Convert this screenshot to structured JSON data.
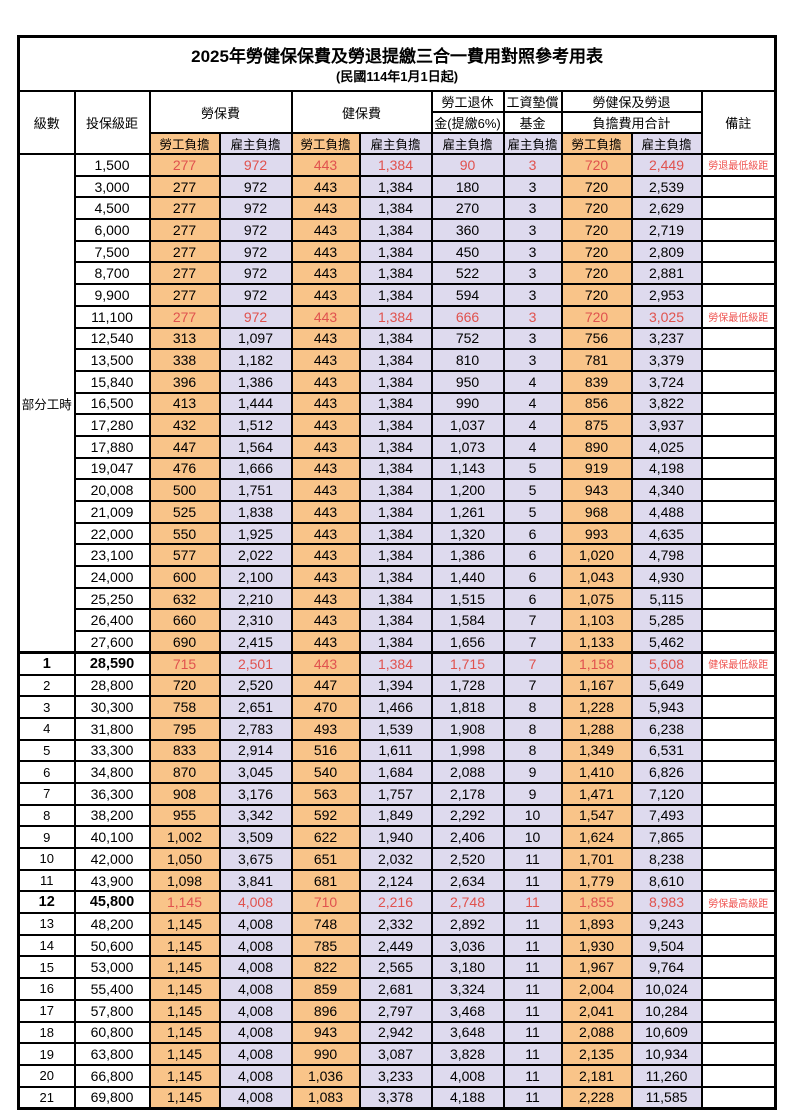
{
  "title": "2025年勞健保保費及勞退提繳三合一費用對照參考用表",
  "subtitle": "(民國114年1月1日起)",
  "colors": {
    "employee_bg": "#f9c489",
    "employer_bg": "#dedaee",
    "red_text": "#e0524e",
    "remark_red": "#ef5350",
    "border": "#000000"
  },
  "header": {
    "level": "級數",
    "bracket": "投保級距",
    "labor_ins": "勞保費",
    "health_ins": "健保費",
    "pension_l1": "勞工退休",
    "pension_l2": "金(提繳6%)",
    "wage_fund_l1": "工資墊償",
    "wage_fund_l2": "基金",
    "total_l1": "勞健保及勞退",
    "total_l2": "負擔費用合計",
    "employee": "勞工負擔",
    "employer": "雇主負擔",
    "remark": "備註"
  },
  "table": {
    "part_time_label": "部分工時",
    "part_time_rowspan": 23,
    "rows": [
      {
        "level": "",
        "bracket": "1,500",
        "values": [
          "277",
          "972",
          "443",
          "1,384",
          "90",
          "3",
          "720",
          "2,449"
        ],
        "remark": "勞退最低級距",
        "red": true,
        "em": false
      },
      {
        "level": "",
        "bracket": "3,000",
        "values": [
          "277",
          "972",
          "443",
          "1,384",
          "180",
          "3",
          "720",
          "2,539"
        ],
        "remark": "",
        "red": false,
        "em": false
      },
      {
        "level": "",
        "bracket": "4,500",
        "values": [
          "277",
          "972",
          "443",
          "1,384",
          "270",
          "3",
          "720",
          "2,629"
        ],
        "remark": "",
        "red": false,
        "em": false
      },
      {
        "level": "",
        "bracket": "6,000",
        "values": [
          "277",
          "972",
          "443",
          "1,384",
          "360",
          "3",
          "720",
          "2,719"
        ],
        "remark": "",
        "red": false,
        "em": false
      },
      {
        "level": "",
        "bracket": "7,500",
        "values": [
          "277",
          "972",
          "443",
          "1,384",
          "450",
          "3",
          "720",
          "2,809"
        ],
        "remark": "",
        "red": false,
        "em": false
      },
      {
        "level": "",
        "bracket": "8,700",
        "values": [
          "277",
          "972",
          "443",
          "1,384",
          "522",
          "3",
          "720",
          "2,881"
        ],
        "remark": "",
        "red": false,
        "em": false
      },
      {
        "level": "",
        "bracket": "9,900",
        "values": [
          "277",
          "972",
          "443",
          "1,384",
          "594",
          "3",
          "720",
          "2,953"
        ],
        "remark": "",
        "red": false,
        "em": false
      },
      {
        "level": "",
        "bracket": "11,100",
        "values": [
          "277",
          "972",
          "443",
          "1,384",
          "666",
          "3",
          "720",
          "3,025"
        ],
        "remark": "勞保最低級距",
        "red": true,
        "em": false
      },
      {
        "level": "",
        "bracket": "12,540",
        "values": [
          "313",
          "1,097",
          "443",
          "1,384",
          "752",
          "3",
          "756",
          "3,237"
        ],
        "remark": "",
        "red": false,
        "em": false
      },
      {
        "level": "",
        "bracket": "13,500",
        "values": [
          "338",
          "1,182",
          "443",
          "1,384",
          "810",
          "3",
          "781",
          "3,379"
        ],
        "remark": "",
        "red": false,
        "em": false
      },
      {
        "level": "",
        "bracket": "15,840",
        "values": [
          "396",
          "1,386",
          "443",
          "1,384",
          "950",
          "4",
          "839",
          "3,724"
        ],
        "remark": "",
        "red": false,
        "em": false
      },
      {
        "level": "",
        "bracket": "16,500",
        "values": [
          "413",
          "1,444",
          "443",
          "1,384",
          "990",
          "4",
          "856",
          "3,822"
        ],
        "remark": "",
        "red": false,
        "em": false
      },
      {
        "level": "",
        "bracket": "17,280",
        "values": [
          "432",
          "1,512",
          "443",
          "1,384",
          "1,037",
          "4",
          "875",
          "3,937"
        ],
        "remark": "",
        "red": false,
        "em": false
      },
      {
        "level": "",
        "bracket": "17,880",
        "values": [
          "447",
          "1,564",
          "443",
          "1,384",
          "1,073",
          "4",
          "890",
          "4,025"
        ],
        "remark": "",
        "red": false,
        "em": false
      },
      {
        "level": "",
        "bracket": "19,047",
        "values": [
          "476",
          "1,666",
          "443",
          "1,384",
          "1,143",
          "5",
          "919",
          "4,198"
        ],
        "remark": "",
        "red": false,
        "em": false
      },
      {
        "level": "",
        "bracket": "20,008",
        "values": [
          "500",
          "1,751",
          "443",
          "1,384",
          "1,200",
          "5",
          "943",
          "4,340"
        ],
        "remark": "",
        "red": false,
        "em": false
      },
      {
        "level": "",
        "bracket": "21,009",
        "values": [
          "525",
          "1,838",
          "443",
          "1,384",
          "1,261",
          "5",
          "968",
          "4,488"
        ],
        "remark": "",
        "red": false,
        "em": false
      },
      {
        "level": "",
        "bracket": "22,000",
        "values": [
          "550",
          "1,925",
          "443",
          "1,384",
          "1,320",
          "6",
          "993",
          "4,635"
        ],
        "remark": "",
        "red": false,
        "em": false
      },
      {
        "level": "",
        "bracket": "23,100",
        "values": [
          "577",
          "2,022",
          "443",
          "1,384",
          "1,386",
          "6",
          "1,020",
          "4,798"
        ],
        "remark": "",
        "red": false,
        "em": false
      },
      {
        "level": "",
        "bracket": "24,000",
        "values": [
          "600",
          "2,100",
          "443",
          "1,384",
          "1,440",
          "6",
          "1,043",
          "4,930"
        ],
        "remark": "",
        "red": false,
        "em": false
      },
      {
        "level": "",
        "bracket": "25,250",
        "values": [
          "632",
          "2,210",
          "443",
          "1,384",
          "1,515",
          "6",
          "1,075",
          "5,115"
        ],
        "remark": "",
        "red": false,
        "em": false
      },
      {
        "level": "",
        "bracket": "26,400",
        "values": [
          "660",
          "2,310",
          "443",
          "1,384",
          "1,584",
          "7",
          "1,103",
          "5,285"
        ],
        "remark": "",
        "red": false,
        "em": false
      },
      {
        "level": "",
        "bracket": "27,600",
        "values": [
          "690",
          "2,415",
          "443",
          "1,384",
          "1,656",
          "7",
          "1,133",
          "5,462"
        ],
        "remark": "",
        "red": false,
        "em": false
      },
      {
        "level": "1",
        "bracket": "28,590",
        "values": [
          "715",
          "2,501",
          "443",
          "1,384",
          "1,715",
          "7",
          "1,158",
          "5,608"
        ],
        "remark": "健保最低級距",
        "red": true,
        "em": true
      },
      {
        "level": "2",
        "bracket": "28,800",
        "values": [
          "720",
          "2,520",
          "447",
          "1,394",
          "1,728",
          "7",
          "1,167",
          "5,649"
        ],
        "remark": "",
        "red": false,
        "em": false
      },
      {
        "level": "3",
        "bracket": "30,300",
        "values": [
          "758",
          "2,651",
          "470",
          "1,466",
          "1,818",
          "8",
          "1,228",
          "5,943"
        ],
        "remark": "",
        "red": false,
        "em": false
      },
      {
        "level": "4",
        "bracket": "31,800",
        "values": [
          "795",
          "2,783",
          "493",
          "1,539",
          "1,908",
          "8",
          "1,288",
          "6,238"
        ],
        "remark": "",
        "red": false,
        "em": false
      },
      {
        "level": "5",
        "bracket": "33,300",
        "values": [
          "833",
          "2,914",
          "516",
          "1,611",
          "1,998",
          "8",
          "1,349",
          "6,531"
        ],
        "remark": "",
        "red": false,
        "em": false
      },
      {
        "level": "6",
        "bracket": "34,800",
        "values": [
          "870",
          "3,045",
          "540",
          "1,684",
          "2,088",
          "9",
          "1,410",
          "6,826"
        ],
        "remark": "",
        "red": false,
        "em": false
      },
      {
        "level": "7",
        "bracket": "36,300",
        "values": [
          "908",
          "3,176",
          "563",
          "1,757",
          "2,178",
          "9",
          "1,471",
          "7,120"
        ],
        "remark": "",
        "red": false,
        "em": false
      },
      {
        "level": "8",
        "bracket": "38,200",
        "values": [
          "955",
          "3,342",
          "592",
          "1,849",
          "2,292",
          "10",
          "1,547",
          "7,493"
        ],
        "remark": "",
        "red": false,
        "em": false
      },
      {
        "level": "9",
        "bracket": "40,100",
        "values": [
          "1,002",
          "3,509",
          "622",
          "1,940",
          "2,406",
          "10",
          "1,624",
          "7,865"
        ],
        "remark": "",
        "red": false,
        "em": false
      },
      {
        "level": "10",
        "bracket": "42,000",
        "values": [
          "1,050",
          "3,675",
          "651",
          "2,032",
          "2,520",
          "11",
          "1,701",
          "8,238"
        ],
        "remark": "",
        "red": false,
        "em": false
      },
      {
        "level": "11",
        "bracket": "43,900",
        "values": [
          "1,098",
          "3,841",
          "681",
          "2,124",
          "2,634",
          "11",
          "1,779",
          "8,610"
        ],
        "remark": "",
        "red": false,
        "em": false
      },
      {
        "level": "12",
        "bracket": "45,800",
        "values": [
          "1,145",
          "4,008",
          "710",
          "2,216",
          "2,748",
          "11",
          "1,855",
          "8,983"
        ],
        "remark": "勞保最高級距",
        "red": true,
        "em": true
      },
      {
        "level": "13",
        "bracket": "48,200",
        "values": [
          "1,145",
          "4,008",
          "748",
          "2,332",
          "2,892",
          "11",
          "1,893",
          "9,243"
        ],
        "remark": "",
        "red": false,
        "em": false
      },
      {
        "level": "14",
        "bracket": "50,600",
        "values": [
          "1,145",
          "4,008",
          "785",
          "2,449",
          "3,036",
          "11",
          "1,930",
          "9,504"
        ],
        "remark": "",
        "red": false,
        "em": false
      },
      {
        "level": "15",
        "bracket": "53,000",
        "values": [
          "1,145",
          "4,008",
          "822",
          "2,565",
          "3,180",
          "11",
          "1,967",
          "9,764"
        ],
        "remark": "",
        "red": false,
        "em": false
      },
      {
        "level": "16",
        "bracket": "55,400",
        "values": [
          "1,145",
          "4,008",
          "859",
          "2,681",
          "3,324",
          "11",
          "2,004",
          "10,024"
        ],
        "remark": "",
        "red": false,
        "em": false
      },
      {
        "level": "17",
        "bracket": "57,800",
        "values": [
          "1,145",
          "4,008",
          "896",
          "2,797",
          "3,468",
          "11",
          "2,041",
          "10,284"
        ],
        "remark": "",
        "red": false,
        "em": false
      },
      {
        "level": "18",
        "bracket": "60,800",
        "values": [
          "1,145",
          "4,008",
          "943",
          "2,942",
          "3,648",
          "11",
          "2,088",
          "10,609"
        ],
        "remark": "",
        "red": false,
        "em": false
      },
      {
        "level": "19",
        "bracket": "63,800",
        "values": [
          "1,145",
          "4,008",
          "990",
          "3,087",
          "3,828",
          "11",
          "2,135",
          "10,934"
        ],
        "remark": "",
        "red": false,
        "em": false
      },
      {
        "level": "20",
        "bracket": "66,800",
        "values": [
          "1,145",
          "4,008",
          "1,036",
          "3,233",
          "4,008",
          "11",
          "2,181",
          "11,260"
        ],
        "remark": "",
        "red": false,
        "em": false
      },
      {
        "level": "21",
        "bracket": "69,800",
        "values": [
          "1,145",
          "4,008",
          "1,083",
          "3,378",
          "4,188",
          "11",
          "2,228",
          "11,585"
        ],
        "remark": "",
        "red": false,
        "em": false
      }
    ]
  }
}
